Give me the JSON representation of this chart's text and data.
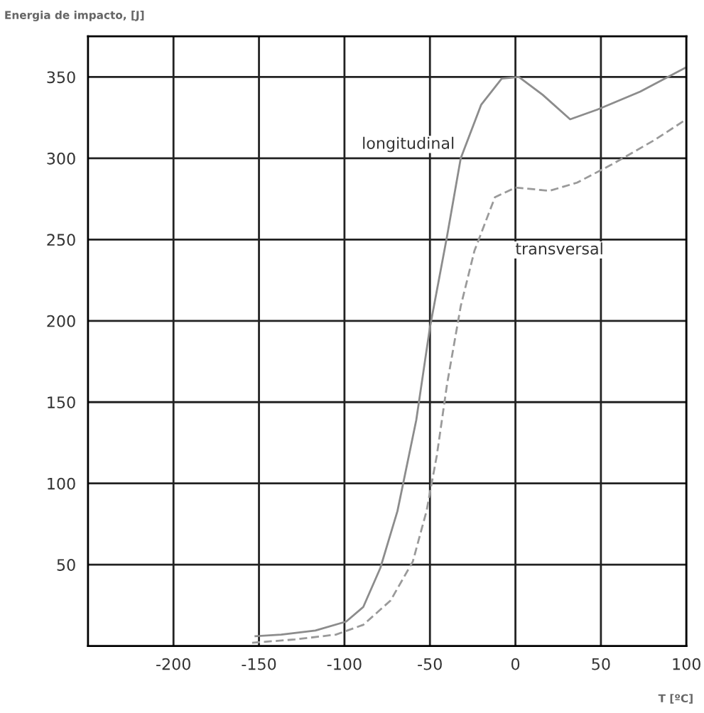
{
  "chart_data": {
    "type": "line",
    "title": "Energia de impacto, [J]",
    "xlabel": "T [ºC]",
    "xlim": [
      -250,
      100
    ],
    "xticks": [
      -200,
      -150,
      -100,
      -50,
      0,
      50,
      100
    ],
    "ylim": [
      0,
      375
    ],
    "yticks": [
      50,
      100,
      150,
      200,
      250,
      300,
      350
    ],
    "grid": true,
    "series": [
      {
        "name": "longitudinal",
        "color": "#8c8c8c",
        "line_style": "solid",
        "x": [
          -152,
          -137,
          -117,
          -99,
          -89,
          -79,
          -69,
          -58,
          -50,
          -40,
          -32,
          -20,
          -8,
          2,
          16,
          32,
          48,
          73,
          100
        ],
        "values": [
          6,
          7,
          9.5,
          15,
          24,
          48,
          83,
          139,
          196,
          252,
          300,
          333,
          349,
          350,
          339,
          324,
          330,
          341,
          356
        ]
      },
      {
        "name": "transversal",
        "color": "#9a9a9a",
        "line_style": "dashed",
        "x": [
          -154,
          -129,
          -105,
          -89,
          -73,
          -60,
          -52,
          -46,
          -40,
          -32,
          -24,
          -12,
          0,
          20,
          36,
          56,
          81,
          100
        ],
        "values": [
          2,
          4,
          7,
          13,
          28,
          52,
          83,
          117,
          161,
          209,
          243,
          276,
          282,
          280,
          285,
          296,
          311,
          324
        ]
      }
    ]
  }
}
